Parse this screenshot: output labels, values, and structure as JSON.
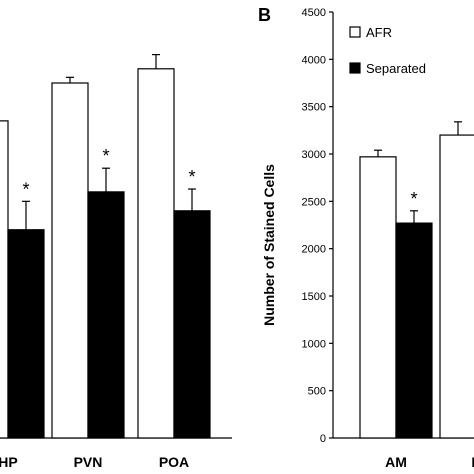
{
  "chart_data": [
    {
      "panel": "",
      "type": "bar",
      "categories": [
        "HP",
        "PVN",
        "POA"
      ],
      "category_labels_visible": [
        "HP",
        "PVN",
        "POA"
      ],
      "series": [
        {
          "name": "AFR",
          "color": "#ffffff",
          "values": [
            3350,
            3750,
            3900
          ],
          "errors": [
            0,
            60,
            150
          ]
        },
        {
          "name": "Separated",
          "color": "#000000",
          "values": [
            2200,
            2600,
            2400
          ],
          "errors": [
            300,
            250,
            230
          ]
        }
      ],
      "significance": [
        "*",
        "*",
        "*"
      ],
      "ylim": [
        0,
        4500
      ]
    },
    {
      "panel": "B",
      "type": "bar",
      "categories": [
        "AM",
        "P"
      ],
      "category_labels_visible": [
        "AM",
        "P"
      ],
      "series": [
        {
          "name": "AFR",
          "color": "#ffffff",
          "values": [
            2970,
            3200
          ],
          "errors": [
            70,
            140
          ]
        },
        {
          "name": "Separated",
          "color": "#000000",
          "values": [
            2270,
            null
          ],
          "errors": [
            130,
            null
          ]
        }
      ],
      "significance": [
        "*",
        ""
      ],
      "ylabel": "Number of Stained Cells",
      "yticks": [
        "0",
        "500",
        "1000",
        "1500",
        "2000",
        "2500",
        "3000",
        "3500",
        "4000",
        "4500"
      ],
      "ylim": [
        0,
        4500
      ],
      "legend": [
        "AFR",
        "Separated"
      ],
      "legend_position": "top-left"
    }
  ]
}
